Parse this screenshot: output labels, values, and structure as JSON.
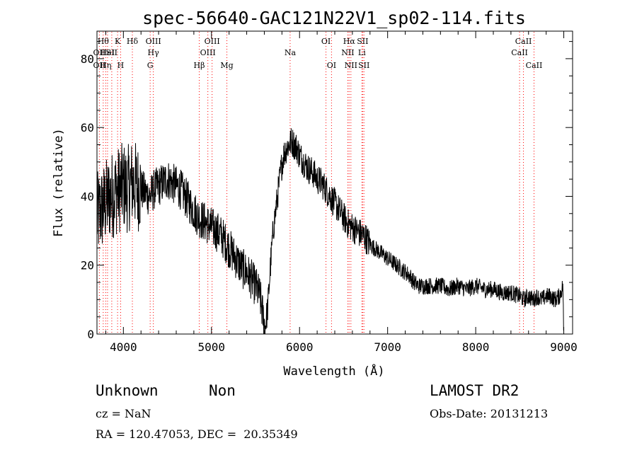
{
  "chart_data": {
    "type": "line",
    "title": "spec-56640-GAC121N22V1_sp02-114.fits",
    "xlabel": "Wavelength (Å)",
    "ylabel": "Flux (relative)",
    "xlim": [
      3700,
      9100
    ],
    "ylim": [
      0,
      88
    ],
    "x_ticks": [
      4000,
      5000,
      6000,
      7000,
      8000,
      9000
    ],
    "y_ticks": [
      0,
      20,
      40,
      60,
      80
    ],
    "series": [
      {
        "x": [
          3700,
          3750,
          3800,
          3850,
          3900,
          3950,
          4000,
          4050,
          4100,
          4150,
          4200,
          4250,
          4300,
          4350,
          4400,
          4450,
          4500,
          4550,
          4600,
          4650,
          4700,
          4750,
          4800,
          4850,
          4900,
          4950,
          5000,
          5050,
          5100,
          5150,
          5200,
          5250,
          5300,
          5350,
          5400,
          5450,
          5500,
          5550,
          5580,
          5610,
          5640,
          5670,
          5700,
          5730,
          5760,
          5790,
          5820,
          5850,
          5880,
          5910,
          5940,
          5970,
          6000,
          6050,
          6100,
          6150,
          6200,
          6250,
          6300,
          6350,
          6400,
          6450,
          6500,
          6550,
          6600,
          6650,
          6700,
          6750,
          6800,
          6850,
          6900,
          6950,
          7000,
          7050,
          7100,
          7150,
          7200,
          7250,
          7300,
          7350,
          7400,
          7450,
          7500,
          7600,
          7700,
          7800,
          7900,
          8000,
          8100,
          8200,
          8300,
          8400,
          8500,
          8550,
          8600,
          8650,
          8700,
          8750,
          8800,
          8850,
          8900,
          8950,
          8990,
          9000
        ],
        "y": [
          34,
          36,
          38,
          40,
          41,
          42,
          43,
          42,
          44,
          43,
          42,
          41,
          40,
          42,
          43,
          44,
          45,
          44,
          43,
          42,
          40,
          38,
          36,
          34,
          33,
          32,
          31,
          30,
          29,
          27,
          25,
          23,
          21,
          19,
          18,
          16,
          14,
          11,
          6,
          2,
          8,
          20,
          30,
          36,
          42,
          48,
          52,
          54,
          55,
          56,
          55,
          54,
          52,
          50,
          48,
          47,
          45,
          44,
          42,
          40,
          38,
          36,
          34,
          32,
          31,
          30,
          29,
          28,
          26,
          25,
          24,
          23,
          22,
          21,
          20,
          19,
          18,
          17,
          15,
          14,
          14,
          14,
          14,
          14,
          13,
          14,
          13,
          14,
          13,
          13,
          12,
          12,
          11,
          10,
          11,
          10,
          11,
          10,
          11,
          11,
          10,
          11,
          14,
          1
        ]
      }
    ]
  },
  "lines": [
    {
      "w": 3771,
      "row": 0,
      "label": "Hθ",
      "side": "center",
      "color": "#000000"
    },
    {
      "w": 3727,
      "row": 1,
      "label": "OII",
      "side": "center",
      "color": "#000000"
    },
    {
      "w": 3727,
      "row": 2,
      "label": "OII",
      "side": "center",
      "color": "#000000"
    },
    {
      "w": 3799,
      "row": 2,
      "label": "Hη",
      "side": "center",
      "color": "#000000"
    },
    {
      "w": 3820,
      "row": 1,
      "label": "HeI",
      "side": "center",
      "color": "#000000"
    },
    {
      "w": 3868,
      "row": 1,
      "label": "SII",
      "side": "center",
      "color": "#000000"
    },
    {
      "w": 3934,
      "row": 0,
      "label": "K",
      "side": "center",
      "color": "#000000"
    },
    {
      "w": 3969,
      "row": 2,
      "label": "H",
      "side": "center",
      "color": "#000000"
    },
    {
      "w": 4102,
      "row": 0,
      "label": "Hδ",
      "side": "center",
      "color": "#000000"
    },
    {
      "w": 4340,
      "row": 0,
      "label": "OIII",
      "side": "center",
      "color": "#000000"
    },
    {
      "w": 4340,
      "row": 1,
      "label": "Hγ",
      "side": "center",
      "color": "#000000"
    },
    {
      "w": 4304,
      "row": 2,
      "label": "G",
      "side": "center",
      "color": "#000000"
    },
    {
      "w": 4861,
      "row": 2,
      "label": "Hβ",
      "side": "center",
      "color": "#000000"
    },
    {
      "w": 4959,
      "row": 1,
      "label": "OIII",
      "side": "center",
      "color": "#000000"
    },
    {
      "w": 5007,
      "row": 0,
      "label": "OIII",
      "side": "center",
      "color": "#000000"
    },
    {
      "w": 5175,
      "row": 2,
      "label": "Mg",
      "side": "center",
      "color": "#000000"
    },
    {
      "w": 5893,
      "row": 1,
      "label": "Na",
      "side": "center",
      "color": "#000000"
    },
    {
      "w": 6300,
      "row": 0,
      "label": "OI",
      "side": "center",
      "color": "#000000"
    },
    {
      "w": 6363,
      "row": 2,
      "label": "OI",
      "side": "center",
      "color": "#000000"
    },
    {
      "w": 6548,
      "row": 1,
      "label": "NII",
      "side": "center",
      "color": "#000000"
    },
    {
      "w": 6563,
      "row": 0,
      "label": "Hα",
      "side": "center",
      "color": "#000000"
    },
    {
      "w": 6583,
      "row": 2,
      "label": "NII",
      "side": "center",
      "color": "#000000"
    },
    {
      "w": 6716,
      "row": 0,
      "label": "SII",
      "side": "center",
      "color": "#000000"
    },
    {
      "w": 6708,
      "row": 1,
      "label": "Li",
      "side": "center",
      "color": "#000000"
    },
    {
      "w": 6731,
      "row": 2,
      "label": "SII",
      "side": "center",
      "color": "#000000"
    },
    {
      "w": 8498,
      "row": 1,
      "label": "CaII",
      "side": "center",
      "color": "#000000"
    },
    {
      "w": 8542,
      "row": 0,
      "label": "CaII",
      "side": "center",
      "color": "#000000"
    },
    {
      "w": 8662,
      "row": 2,
      "label": "CaII",
      "side": "center",
      "color": "#000000"
    }
  ],
  "line_marker_color": "#ff0000",
  "info": {
    "class": "Unknown",
    "subclass": "Non",
    "survey": "LAMOST DR2",
    "cz": "cz = NaN",
    "obsdate": "Obs-Date: 20131213",
    "radec": "RA = 120.47053, DEC =  20.35349"
  }
}
